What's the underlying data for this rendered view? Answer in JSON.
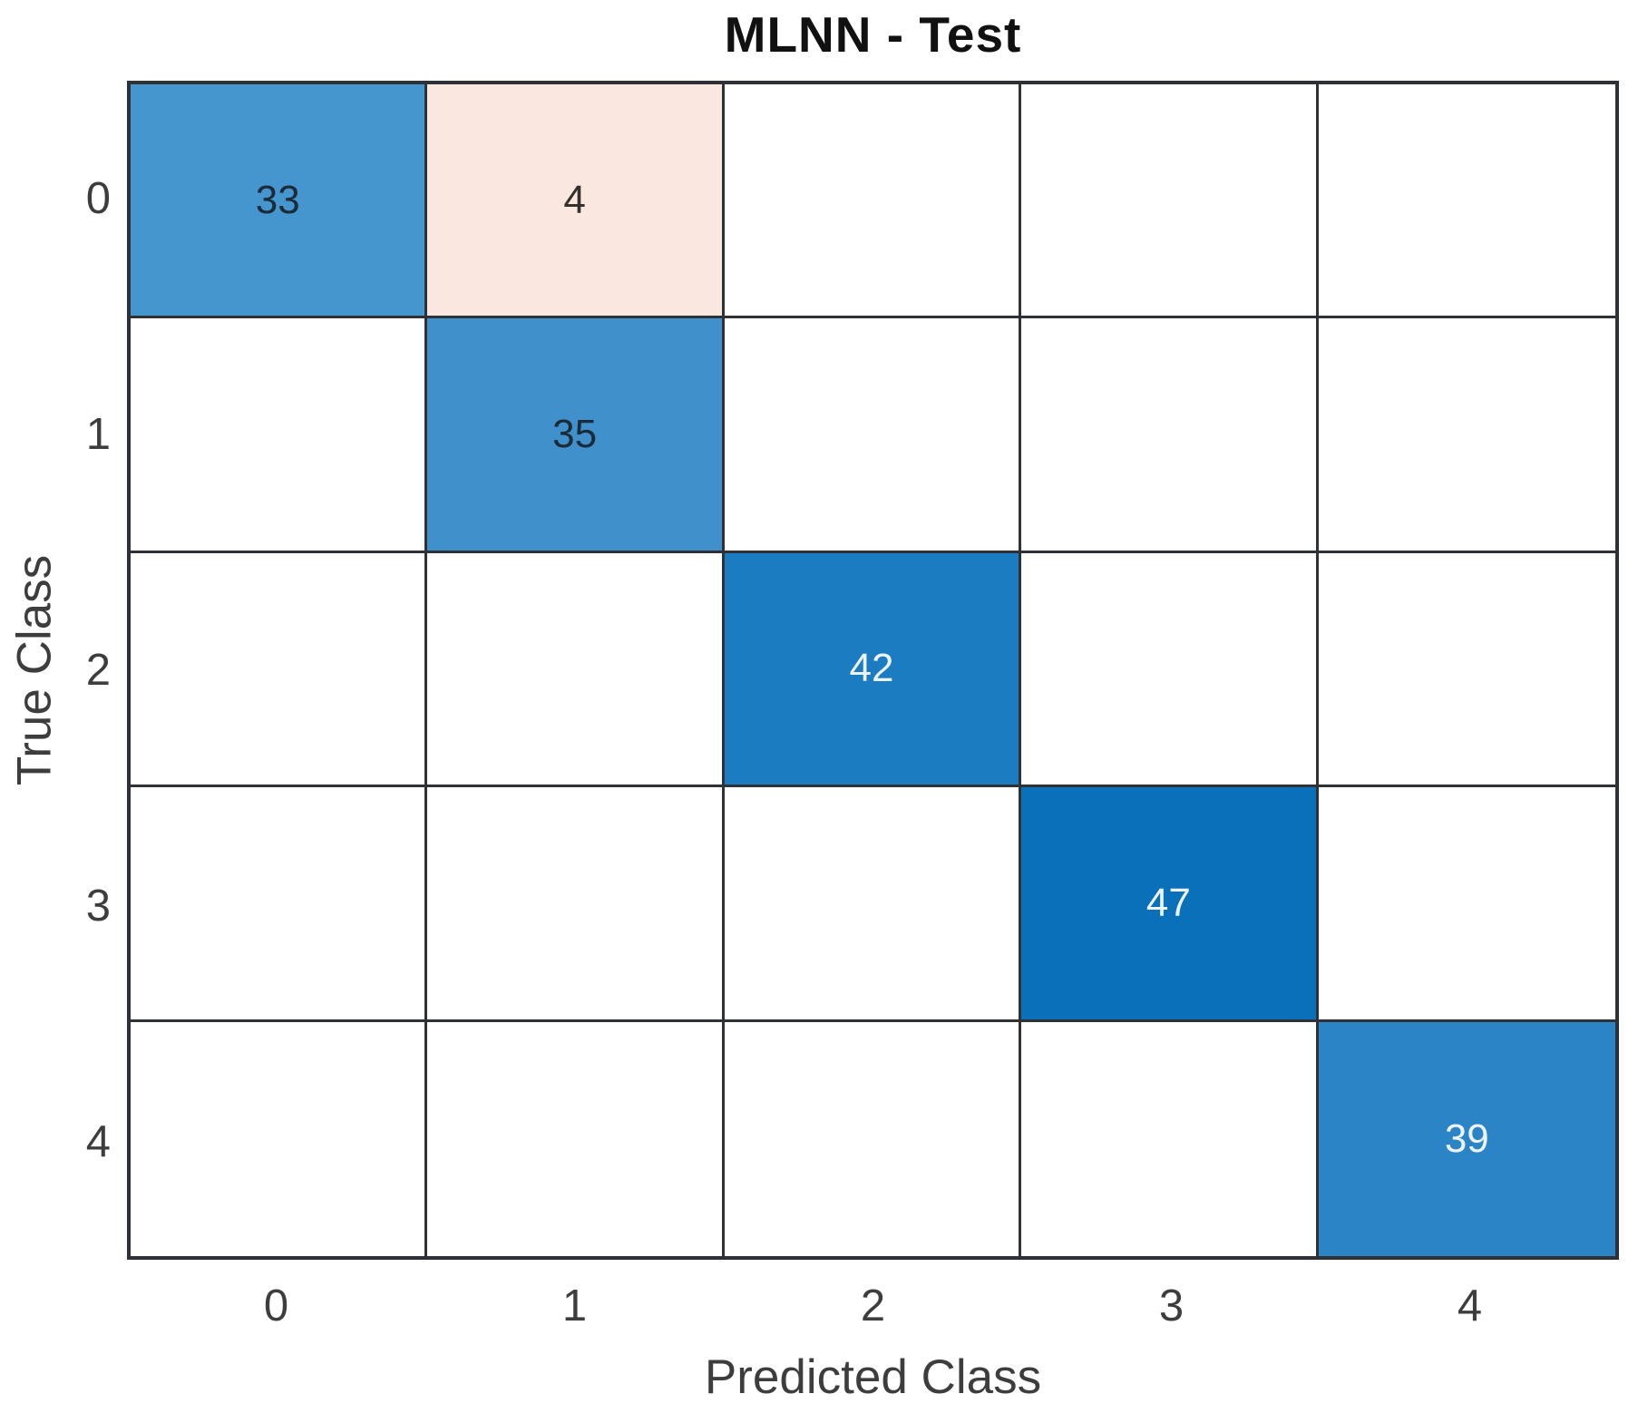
{
  "figure": {
    "title": "MLNN - Test",
    "x_axis_label": "Predicted Class",
    "y_axis_label": "True Class"
  },
  "chart_data": {
    "type": "heatmap",
    "subtype": "confusion_matrix",
    "title": "MLNN - Test",
    "xlabel": "Predicted Class",
    "ylabel": "True Class",
    "x_tick_labels": [
      "0",
      "1",
      "2",
      "3",
      "4"
    ],
    "y_tick_labels": [
      "0",
      "1",
      "2",
      "3",
      "4"
    ],
    "matrix": [
      [
        33,
        4,
        null,
        null,
        null
      ],
      [
        null,
        35,
        null,
        null,
        null
      ],
      [
        null,
        null,
        42,
        null,
        null
      ],
      [
        null,
        null,
        null,
        47,
        null
      ],
      [
        null,
        null,
        null,
        null,
        39
      ]
    ],
    "cell_styles": [
      {
        "row": 0,
        "col": 0,
        "value": 33,
        "bg": "#4595ce",
        "text_color": "#1b2b38"
      },
      {
        "row": 0,
        "col": 1,
        "value": 4,
        "bg": "#fae7e0",
        "text_color": "#33302e"
      },
      {
        "row": 1,
        "col": 1,
        "value": 35,
        "bg": "#3f90cb",
        "text_color": "#1b2b38"
      },
      {
        "row": 2,
        "col": 2,
        "value": 42,
        "bg": "#1b7cc1",
        "text_color": "#edf3f9"
      },
      {
        "row": 3,
        "col": 3,
        "value": 47,
        "bg": "#0b70ba",
        "text_color": "#edf3f9"
      },
      {
        "row": 4,
        "col": 4,
        "value": 39,
        "bg": "#2b84c5",
        "text_color": "#edf3f9"
      }
    ],
    "colors": {
      "diagonal_max": "#0b70ba",
      "off_diagonal": "#fae7e0",
      "empty_cell": "#ffffff",
      "grid_line": "#2e3237",
      "axis_text": "#3d3d3d",
      "title_text": "#111111"
    },
    "grid": true,
    "legend": null
  }
}
